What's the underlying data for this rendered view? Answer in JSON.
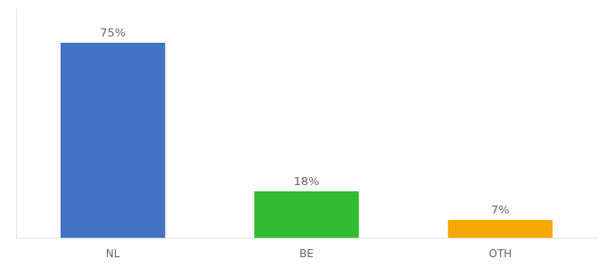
{
  "chart_data": {
    "type": "bar",
    "categories": [
      "NL",
      "BE",
      "OTH"
    ],
    "values": [
      75,
      18,
      7
    ],
    "value_labels": [
      "75%",
      "18%",
      "7%"
    ],
    "colors": [
      "#4472c4",
      "#33bb33",
      "#f5a800"
    ],
    "data_labels": true,
    "ylim": [
      0,
      88
    ],
    "tick_labels": "x",
    "grid": false
  }
}
